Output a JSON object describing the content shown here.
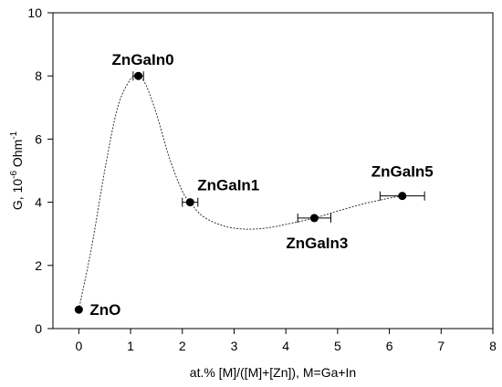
{
  "chart_data": {
    "type": "scatter",
    "xlabel": "at.% [M]/([M]+[Zn]), M=Ga+In",
    "ylabel_main": "G, 10",
    "ylabel_sup1": "-6",
    "ylabel_mid": " Ohm",
    "ylabel_sup2": "-1",
    "xlim": [
      -0.5,
      8
    ],
    "ylim": [
      0,
      10
    ],
    "xticks": [
      0,
      1,
      2,
      3,
      4,
      5,
      6,
      7,
      8
    ],
    "yticks": [
      0,
      2,
      4,
      6,
      8,
      10
    ],
    "grid": false,
    "points": [
      {
        "label": "ZnO",
        "x": 0.0,
        "y": 0.6,
        "xerr": 0
      },
      {
        "label": "ZnGaIn0",
        "x": 1.15,
        "y": 8.0,
        "xerr": 0.1
      },
      {
        "label": "ZnGaIn1",
        "x": 2.15,
        "y": 4.0,
        "xerr": 0.15
      },
      {
        "label": "ZnGaIn3",
        "x": 4.55,
        "y": 3.5,
        "xerr": 0.32
      },
      {
        "label": "ZnGaIn5",
        "x": 6.25,
        "y": 4.2,
        "xerr": 0.43
      }
    ],
    "trend_curve": {
      "style": "dotted",
      "x": [
        0.0,
        0.25,
        0.5,
        0.75,
        1.0,
        1.15,
        1.3,
        1.5,
        1.75,
        2.0,
        2.15,
        2.4,
        2.8,
        3.2,
        3.6,
        4.0,
        4.55,
        5.0,
        5.5,
        6.0,
        6.25
      ],
      "y": [
        0.6,
        2.6,
        5.0,
        7.0,
        7.9,
        8.0,
        7.7,
        6.8,
        5.4,
        4.35,
        4.0,
        3.55,
        3.25,
        3.15,
        3.18,
        3.3,
        3.5,
        3.72,
        3.95,
        4.13,
        4.2
      ]
    }
  }
}
